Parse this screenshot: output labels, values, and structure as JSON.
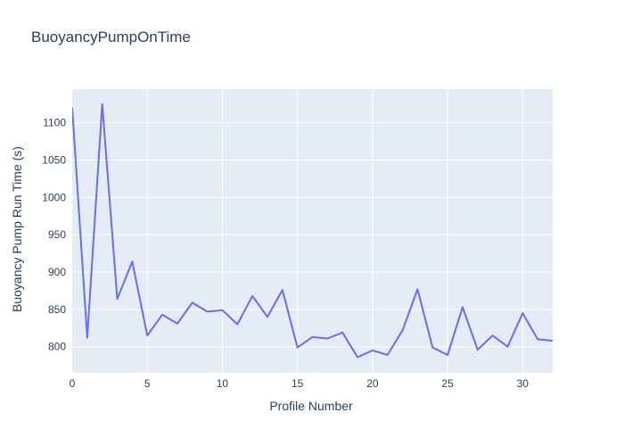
{
  "title": "BuoyancyPumpOnTime",
  "chart_data": {
    "type": "line",
    "title": "BuoyancyPumpOnTime",
    "xlabel": "Profile Number",
    "ylabel": "Buoyancy Pump Run Time (s)",
    "x": [
      0,
      1,
      2,
      3,
      4,
      5,
      6,
      7,
      8,
      9,
      10,
      11,
      12,
      13,
      14,
      15,
      16,
      17,
      18,
      19,
      20,
      21,
      22,
      23,
      24,
      25,
      26,
      27,
      28,
      29,
      30,
      31,
      32
    ],
    "y": [
      1120,
      812,
      1125,
      864,
      914,
      815,
      843,
      831,
      859,
      847,
      849,
      830,
      868,
      840,
      876,
      799,
      813,
      811,
      819,
      786,
      795,
      789,
      822,
      877,
      799,
      789,
      853,
      796,
      815,
      800,
      845,
      810,
      808
    ],
    "xlim": [
      0,
      32
    ],
    "ylim": [
      765,
      1145
    ],
    "x_ticks": [
      0,
      5,
      10,
      15,
      20,
      25,
      30
    ],
    "y_ticks": [
      800,
      850,
      900,
      950,
      1000,
      1050,
      1100
    ],
    "grid": true,
    "legend_position": "none",
    "line_color": "#636EFA",
    "plot_bg_color": "#E5ECF6",
    "grid_color": "#FFFFFF",
    "text_color": "#2A3F5F"
  }
}
